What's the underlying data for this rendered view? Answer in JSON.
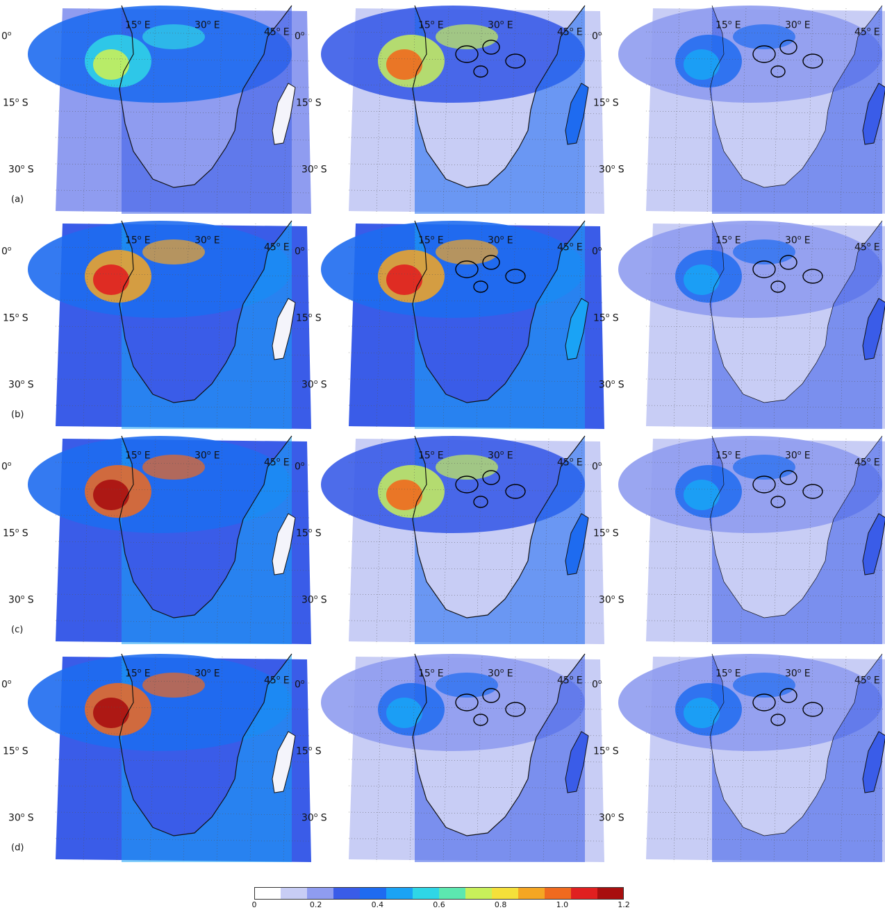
{
  "figure": {
    "row_labels": [
      "(a)",
      "(b)",
      "(c)",
      "(d)"
    ],
    "lon_labels": [
      {
        "deg": "15",
        "dir": "E"
      },
      {
        "deg": "30",
        "dir": "E"
      },
      {
        "deg": "45",
        "dir": "E"
      }
    ],
    "lat_labels": [
      {
        "deg": "0",
        "dir": ""
      },
      {
        "deg": "15",
        "dir": "S"
      },
      {
        "deg": "30",
        "dir": "S"
      }
    ],
    "panels": [
      {
        "row": 0,
        "col": 0,
        "intensity": "low-mid",
        "has_contours": false
      },
      {
        "row": 0,
        "col": 1,
        "intensity": "mid",
        "has_contours": true
      },
      {
        "row": 0,
        "col": 2,
        "intensity": "low",
        "has_contours": true
      },
      {
        "row": 1,
        "col": 0,
        "intensity": "high",
        "has_contours": false
      },
      {
        "row": 1,
        "col": 1,
        "intensity": "high",
        "has_contours": true
      },
      {
        "row": 1,
        "col": 2,
        "intensity": "low",
        "has_contours": true
      },
      {
        "row": 2,
        "col": 0,
        "intensity": "very-high",
        "has_contours": false
      },
      {
        "row": 2,
        "col": 1,
        "intensity": "mid",
        "has_contours": true
      },
      {
        "row": 2,
        "col": 2,
        "intensity": "low",
        "has_contours": true
      },
      {
        "row": 3,
        "col": 0,
        "intensity": "very-high",
        "has_contours": false
      },
      {
        "row": 3,
        "col": 1,
        "intensity": "low",
        "has_contours": true
      },
      {
        "row": 3,
        "col": 2,
        "intensity": "low",
        "has_contours": true
      }
    ]
  },
  "colorbar": {
    "min": 0,
    "max": 1.2,
    "ticks": [
      "0",
      "0.2",
      "0.4",
      "0.6",
      "0.8",
      "1.0",
      "1.2"
    ],
    "colors": [
      "#ffffff",
      "#c8cdf5",
      "#8f9cf0",
      "#3a5ce8",
      "#1e6bf0",
      "#1aa3f5",
      "#2fd6e6",
      "#5ce8b0",
      "#c8f05a",
      "#f5e03a",
      "#f5a623",
      "#f06a1e",
      "#e02020",
      "#a80f0f"
    ]
  }
}
